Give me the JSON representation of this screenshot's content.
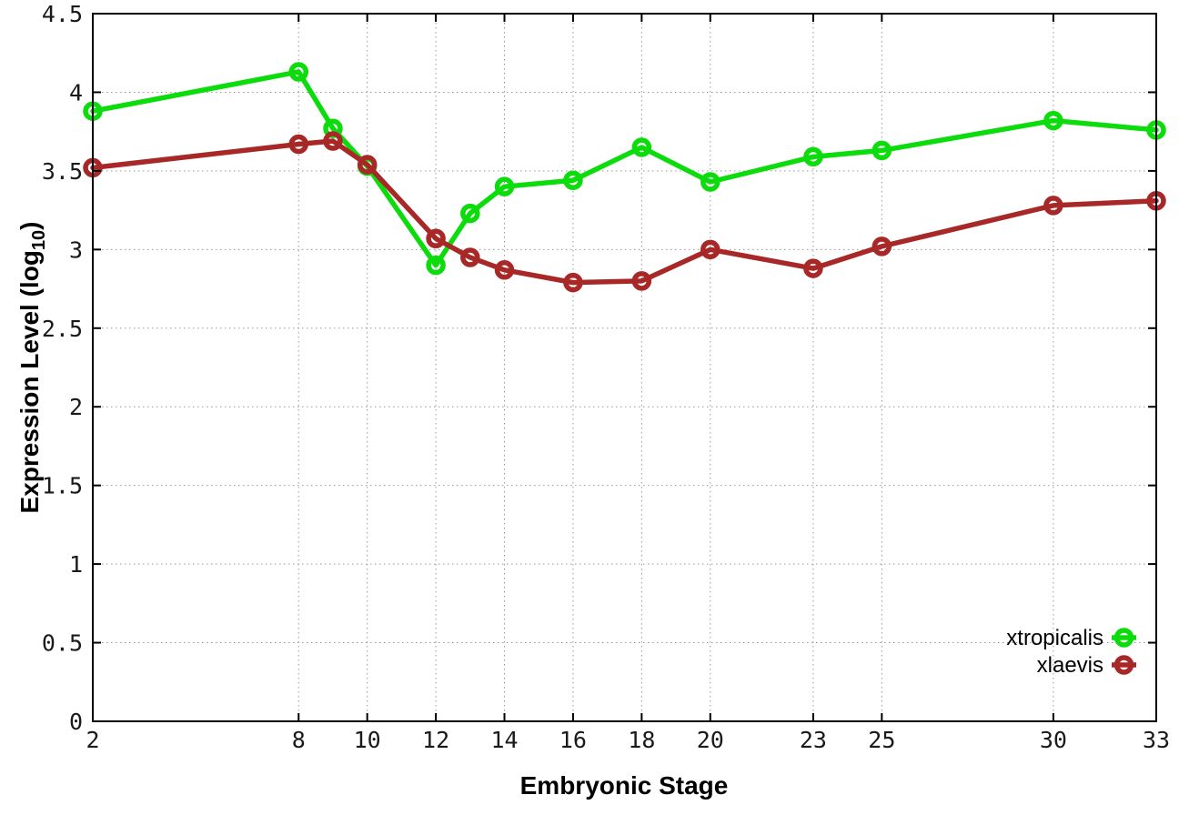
{
  "chart_data": {
    "type": "line",
    "title": "",
    "xlabel": "Embryonic Stage",
    "ylabel": "Expression Level (log10)",
    "ylabel_parts": {
      "main": "Expression Level (log",
      "sub": "10",
      "end": ")"
    },
    "x": [
      2,
      8,
      9,
      10,
      12,
      13,
      14,
      16,
      18,
      20,
      23,
      25,
      30,
      33
    ],
    "series": [
      {
        "name": "xtropicalis",
        "color": "#0cdc0c",
        "marker": "open-circle",
        "values": [
          3.88,
          4.13,
          3.77,
          3.53,
          2.9,
          3.23,
          3.4,
          3.44,
          3.65,
          3.43,
          3.59,
          3.63,
          3.82,
          3.76
        ]
      },
      {
        "name": "xlaevis",
        "color": "#a82828",
        "marker": "open-circle",
        "values": [
          3.52,
          3.67,
          3.69,
          3.54,
          3.07,
          2.95,
          2.87,
          2.79,
          2.8,
          3.0,
          2.88,
          3.02,
          3.28,
          3.31
        ]
      }
    ],
    "xlim": [
      2,
      33
    ],
    "ylim": [
      0,
      4.5
    ],
    "xticks": [
      2,
      8,
      10,
      12,
      14,
      16,
      18,
      20,
      23,
      25,
      30,
      33
    ],
    "yticks": [
      0,
      0.5,
      1,
      1.5,
      2,
      2.5,
      3,
      3.5,
      4,
      4.5
    ],
    "grid": "dotted",
    "grid_on": true,
    "legend_position": "bottom-right",
    "legend_entries": [
      "xtropicalis",
      "xlaevis"
    ]
  },
  "styles": {
    "background": "#ffffff",
    "grid_color": "#999999",
    "border_color": "#000000",
    "tick_color": "#000000",
    "text_color": "#1a1a1a"
  }
}
